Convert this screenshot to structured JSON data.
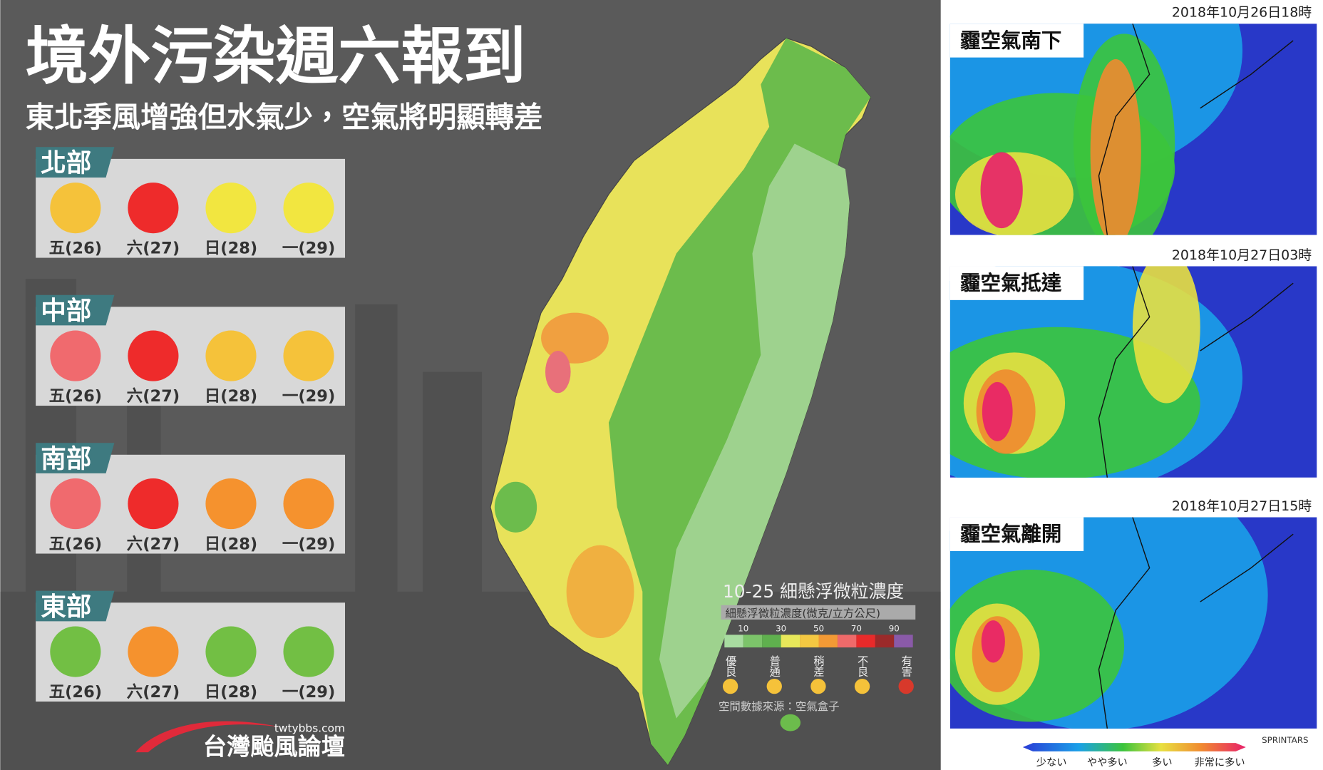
{
  "header": {
    "title": "境外污染週六報到",
    "subtitle": "東北季風增強但水氣少，空氣將明顯轉差"
  },
  "regions": [
    {
      "name": "北部",
      "days": [
        {
          "label": "五(26)",
          "color": "#f5c23a"
        },
        {
          "label": "六(27)",
          "color": "#ee2b2b"
        },
        {
          "label": "日(28)",
          "color": "#f2e640"
        },
        {
          "label": "一(29)",
          "color": "#f2e640"
        }
      ]
    },
    {
      "name": "中部",
      "days": [
        {
          "label": "五(26)",
          "color": "#f06a6e"
        },
        {
          "label": "六(27)",
          "color": "#ee2b2b"
        },
        {
          "label": "日(28)",
          "color": "#f5c23a"
        },
        {
          "label": "一(29)",
          "color": "#f5c23a"
        }
      ]
    },
    {
      "name": "南部",
      "days": [
        {
          "label": "五(26)",
          "color": "#f06a6e"
        },
        {
          "label": "六(27)",
          "color": "#ee2b2b"
        },
        {
          "label": "日(28)",
          "color": "#f5922e"
        },
        {
          "label": "一(29)",
          "color": "#f5922e"
        }
      ]
    },
    {
      "name": "東部",
      "days": [
        {
          "label": "五(26)",
          "color": "#72bf44"
        },
        {
          "label": "六(27)",
          "color": "#f5922e"
        },
        {
          "label": "日(28)",
          "color": "#72bf44"
        },
        {
          "label": "一(29)",
          "color": "#72bf44"
        }
      ]
    }
  ],
  "pm_legend": {
    "title": "10-25 細懸浮微粒濃度",
    "subtitle": "細懸浮微粒濃度(微克/立方公尺)",
    "ticks": [
      10,
      30,
      50,
      70,
      90
    ],
    "scale_colors": [
      "#a8dca0",
      "#7cc46a",
      "#5fb04e",
      "#e8e85a",
      "#f4c842",
      "#f39a35",
      "#ef6a6a",
      "#e82a2a",
      "#9b2a2a",
      "#8a5aa8"
    ],
    "levels": [
      {
        "label": "優良",
        "color": "#f5c23a"
      },
      {
        "label": "普通",
        "color": "#f5c23a"
      },
      {
        "label": "稍差",
        "color": "#f5c23a"
      },
      {
        "label": "不良",
        "color": "#f5c23a"
      },
      {
        "label": "有害",
        "color": "#d8392b"
      }
    ],
    "source": "空間數據來源：空氣盒子"
  },
  "brand": {
    "site": "twtybbs.com",
    "name": "台灣颱風論壇"
  },
  "forecast_maps": [
    {
      "time": "2018年10月26日18時",
      "label": "霾空氣南下"
    },
    {
      "time": "2018年10月27日03時",
      "label": "霾空氣抵達"
    },
    {
      "time": "2018年10月27日15時",
      "label": "霾空氣離開"
    }
  ],
  "sprintars_legend": {
    "labels": [
      "少ない",
      "やや多い",
      "多い",
      "非常に多い"
    ],
    "credit": "SPRINTARS"
  }
}
